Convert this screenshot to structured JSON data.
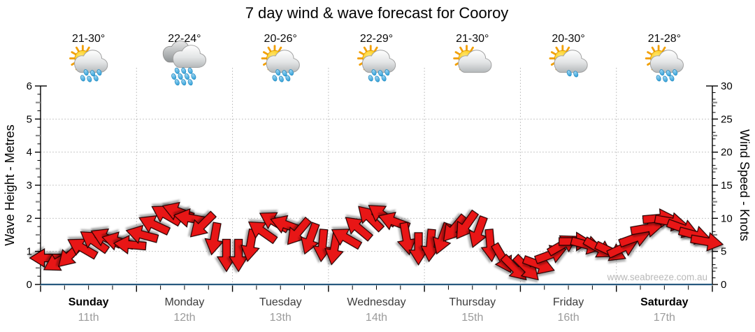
{
  "title": "7 day wind & wave forecast for Cooroy",
  "watermark": "www.seabreeze.com.au",
  "colors": {
    "arrow_fill": "#e81414",
    "arrow_stroke": "#1c0000",
    "axis_bottom_blue": "#27597f",
    "grid_gray": "#b5b5b5",
    "minor_gray": "#8a8a8a",
    "date_gray": "#9b9b9b",
    "watermark_gray": "#b8b8b8",
    "sun_yellow": "#fdb813",
    "raindrop_blue": "#4fb0e2",
    "cloud_gray": "#c9cccd"
  },
  "axes": {
    "left_label": "Wave Height - Metres",
    "right_label": "Wind Speed - Knots",
    "left_ticks": [
      0,
      1,
      2,
      3,
      4,
      5,
      6
    ],
    "right_ticks": [
      0,
      5,
      10,
      15,
      20,
      25,
      30
    ],
    "left_range_metres": [
      0,
      6
    ],
    "right_range_knots": [
      0,
      30
    ]
  },
  "days": [
    {
      "name": "Sunday",
      "date": "11th",
      "temp": "21-30°",
      "icon": "sun-cloud-rain",
      "bold": true
    },
    {
      "name": "Monday",
      "date": "12th",
      "temp": "22-24°",
      "icon": "clouds-heavy-rain",
      "bold": false
    },
    {
      "name": "Tuesday",
      "date": "13th",
      "temp": "20-26°",
      "icon": "sun-cloud-rain",
      "bold": false
    },
    {
      "name": "Wednesday",
      "date": "14th",
      "temp": "22-29°",
      "icon": "sun-cloud-rain",
      "bold": false
    },
    {
      "name": "Thursday",
      "date": "15th",
      "temp": "21-30°",
      "icon": "sun-cloud",
      "bold": false
    },
    {
      "name": "Friday",
      "date": "16th",
      "temp": "20-30°",
      "icon": "sun-cloud-light-rain",
      "bold": false
    },
    {
      "name": "Saturday",
      "date": "17th",
      "temp": "21-28°",
      "icon": "sun-cloud-rain",
      "bold": true
    }
  ],
  "chart_data": {
    "type": "wind-arrows",
    "title": "7 day wind & wave forecast for Cooroy",
    "categories": [
      "Sunday 11th",
      "Monday 12th",
      "Tuesday 13th",
      "Wednesday 14th",
      "Thursday 15th",
      "Friday 16th",
      "Saturday 17th"
    ],
    "interval_hours": 3,
    "ylabel_left": "Wave Height - Metres",
    "ylabel_right": "Wind Speed - Knots",
    "ylim_left_m": [
      0,
      6
    ],
    "ylim_right_knots": [
      0,
      30
    ],
    "grid": "dotted horizontal at 1-5 m (5-25 kn) and vertical at day boundaries",
    "wave_height_m": 0,
    "wind": {
      "units": "knots",
      "direction_convention": "screen angle: 0=pointing right, 90=pointing down, clockwise",
      "speeds_knots": [
        4,
        3.5,
        4.5,
        5.5,
        6.5,
        7,
        6.5,
        6,
        7.5,
        9,
        10.5,
        11,
        10,
        9,
        7,
        4.5,
        4.5,
        6,
        8,
        9.5,
        9,
        8,
        7,
        6,
        5.5,
        7,
        8.5,
        10,
        10.5,
        9.5,
        7,
        5.5,
        6,
        7,
        8.5,
        9,
        8,
        6,
        4,
        2.5,
        2.5,
        3,
        4.5,
        6,
        6.5,
        6,
        5.5,
        5,
        5.5,
        7,
        8.5,
        10,
        9.5,
        8.5,
        7.5,
        6.5
      ],
      "directions_deg_screen": [
        180,
        150,
        135,
        210,
        215,
        205,
        195,
        185,
        195,
        205,
        210,
        200,
        190,
        135,
        100,
        90,
        90,
        100,
        215,
        210,
        200,
        130,
        110,
        95,
        100,
        210,
        220,
        225,
        215,
        200,
        80,
        90,
        95,
        110,
        130,
        125,
        110,
        85,
        60,
        45,
        45,
        20,
        340,
        330,
        0,
        15,
        30,
        25,
        335,
        340,
        350,
        355,
        10,
        20,
        15,
        10
      ]
    }
  }
}
